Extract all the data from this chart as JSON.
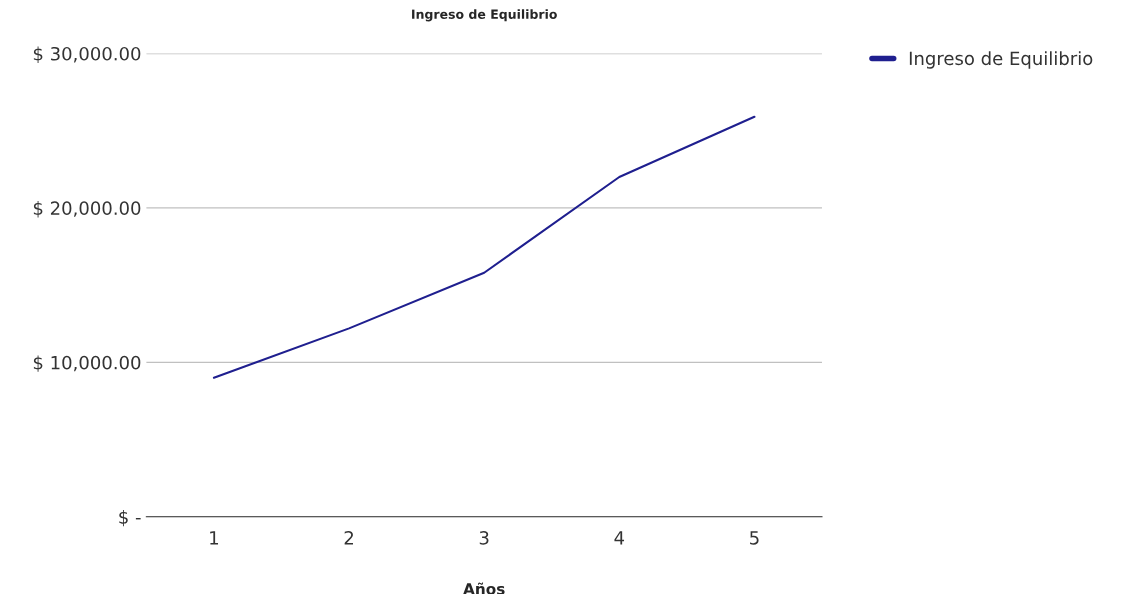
{
  "chart_data": {
    "type": "line",
    "title": "Ingreso de Equilibrio",
    "xlabel": "Años",
    "categories": [
      "1",
      "2",
      "3",
      "4",
      "5"
    ],
    "series": [
      {
        "name": "Ingreso de Equilibrio",
        "color": "#1f1f8f",
        "values": [
          9000,
          12200,
          15800,
          22000,
          25900
        ]
      }
    ],
    "ylim": [
      0,
      30000
    ],
    "yticks": [
      {
        "value": 0,
        "label": "$ -"
      },
      {
        "value": 10000,
        "label": "$ 10,000.00"
      },
      {
        "value": 20000,
        "label": "$ 20,000.00"
      },
      {
        "value": 30000,
        "label": "$ 30,000.00"
      }
    ],
    "grid": "y",
    "legend": "top right",
    "marker": "none",
    "line_style": "solid"
  }
}
